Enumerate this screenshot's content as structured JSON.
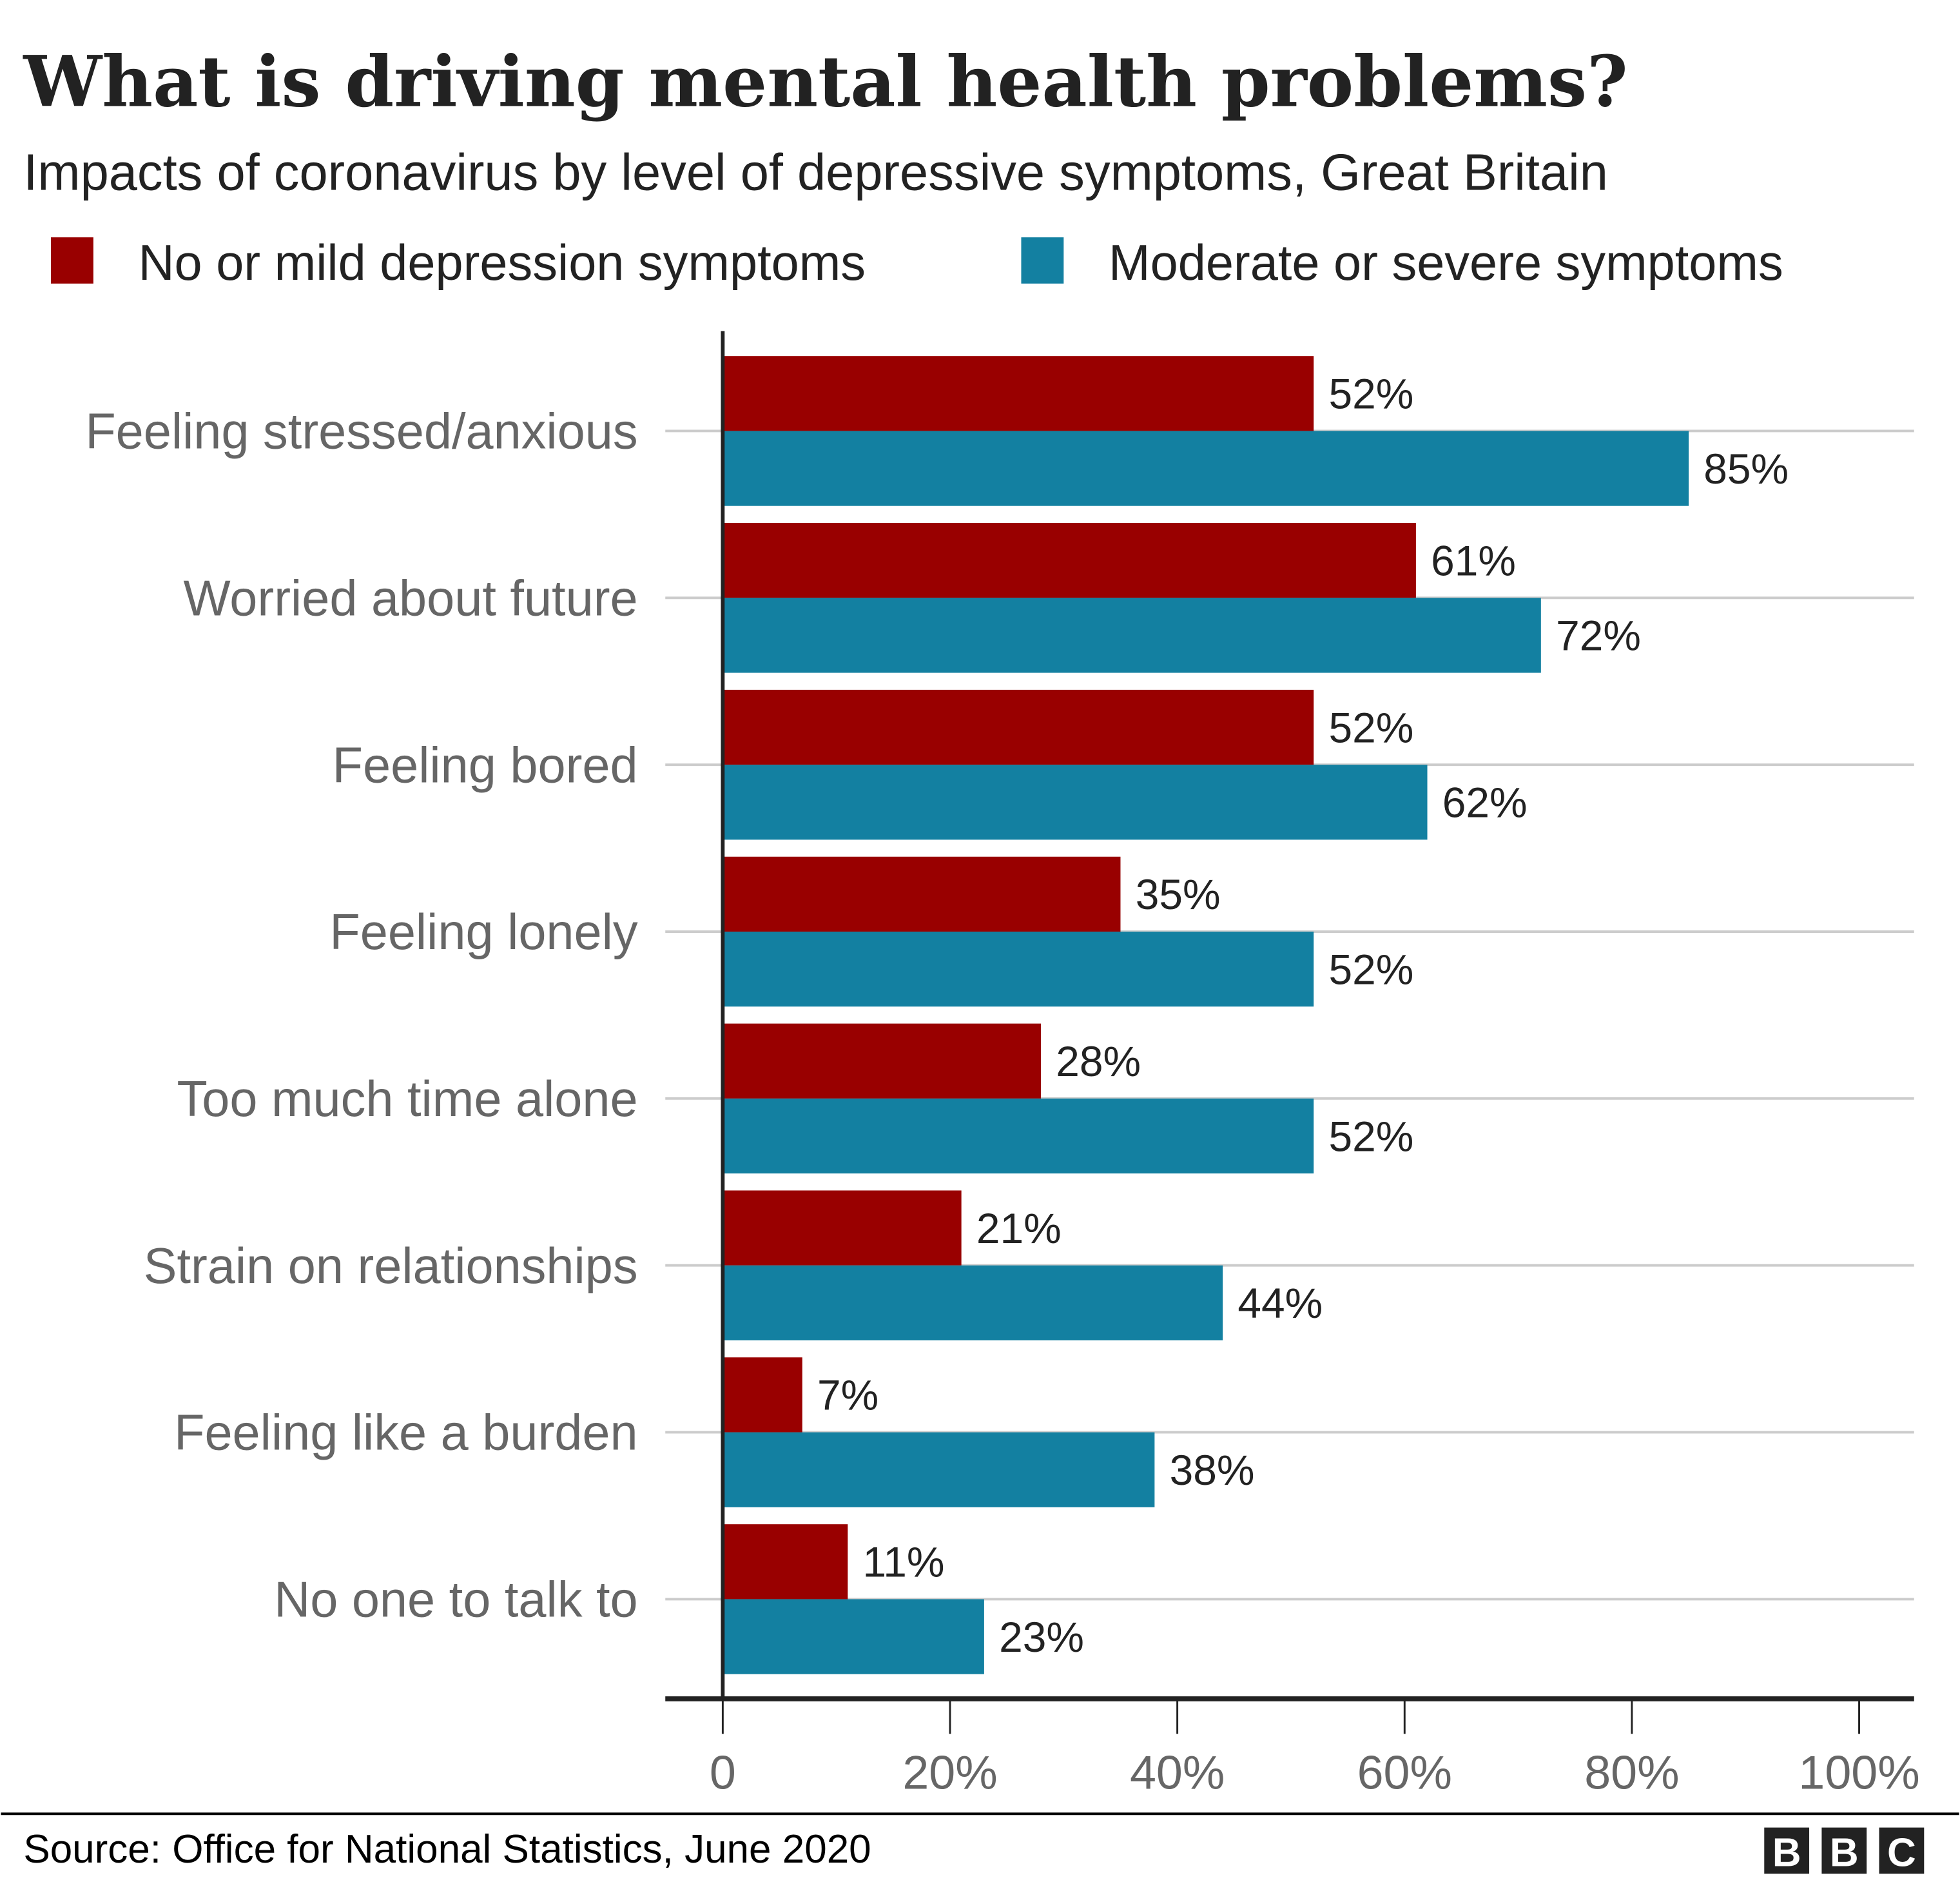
{
  "chart_data": {
    "type": "bar",
    "orientation": "horizontal",
    "title": "What is driving mental health problems?",
    "subtitle": "Impacts of coronavirus by level of depressive symptoms, Great Britain",
    "categories": [
      "Feeling stressed/anxious",
      "Worried about future",
      "Feeling bored",
      "Feeling lonely",
      "Too much time alone",
      "Strain on relationships",
      "Feeling like a burden",
      "No one to talk to"
    ],
    "series": [
      {
        "name": "No or mild depression symptoms",
        "color": "#990000",
        "values": [
          52,
          61,
          52,
          35,
          28,
          21,
          7,
          11
        ],
        "labels": [
          "52%",
          "61%",
          "52%",
          "35%",
          "28%",
          "21%",
          "7%",
          "11%"
        ]
      },
      {
        "name": "Moderate or severe symptoms",
        "color": "#1380A1",
        "values": [
          85,
          72,
          62,
          52,
          52,
          44,
          38,
          23
        ],
        "labels": [
          "85%",
          "72%",
          "62%",
          "52%",
          "52%",
          "44%",
          "38%",
          "23%"
        ]
      }
    ],
    "xlim": [
      0,
      100
    ],
    "xticks": [
      0,
      20,
      40,
      60,
      80,
      100
    ],
    "xtick_labels": [
      "0",
      "20%",
      "40%",
      "60%",
      "80%",
      "100%"
    ],
    "grid": true,
    "legend_position": "top-left",
    "source": "Source: Office for National Statistics, June 2020",
    "logo": "BBC"
  }
}
